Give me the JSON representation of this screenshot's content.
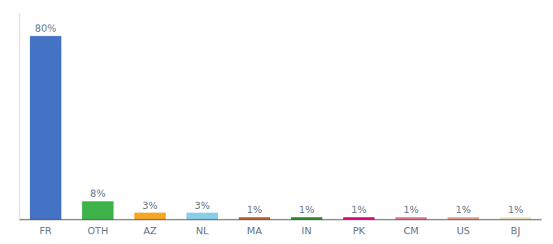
{
  "chart_data": {
    "type": "bar",
    "categories": [
      "FR",
      "OTH",
      "AZ",
      "NL",
      "MA",
      "IN",
      "PK",
      "CM",
      "US",
      "BJ"
    ],
    "values": [
      80,
      8,
      3,
      3,
      1,
      1,
      1,
      1,
      1,
      1
    ],
    "value_labels": [
      "80%",
      "8%",
      "3%",
      "3%",
      "1%",
      "1%",
      "1%",
      "1%",
      "1%",
      "1%"
    ],
    "colors": [
      "#4472c4",
      "#3db34a",
      "#f5a623",
      "#87ceeb",
      "#c0622b",
      "#2d8b2d",
      "#e0057b",
      "#e87890",
      "#e8a090",
      "#e8e8c0"
    ],
    "ylim": [
      0,
      90
    ],
    "data_labels": true,
    "tick_labels": "x",
    "grid": false
  }
}
